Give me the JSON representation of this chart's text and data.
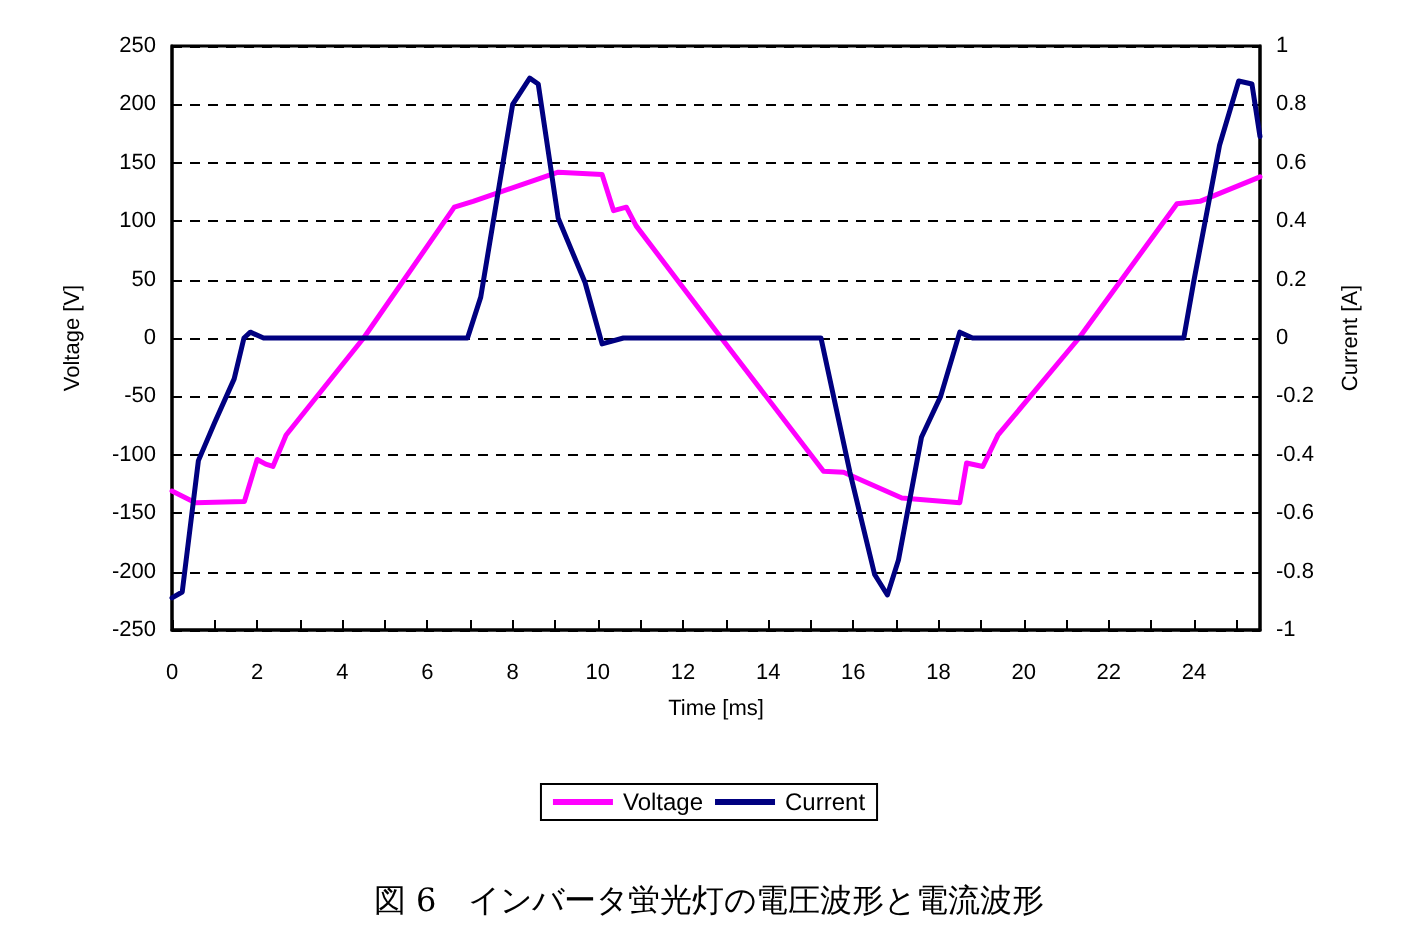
{
  "chart_data": {
    "type": "line",
    "xlabel": "Time [ms]",
    "ylabel": "Voltage [V]",
    "y2label": "Current [A]",
    "annotations": [
      "図 6　インバータ蛍光灯の電圧波形と電流波形"
    ],
    "xlim": [
      0,
      25.55
    ],
    "xticks": [
      0,
      {
        "value": 1,
        "label": null
      },
      2,
      {
        "value": 3,
        "label": null
      },
      4,
      {
        "value": 5,
        "label": null
      },
      6,
      {
        "value": 7,
        "label": null
      },
      8,
      {
        "value": 9,
        "label": null
      },
      10,
      {
        "value": 11,
        "label": null
      },
      12,
      {
        "value": 13,
        "label": null
      },
      14,
      {
        "value": 15,
        "label": null
      },
      16,
      {
        "value": 17,
        "label": null
      },
      18,
      {
        "value": 19,
        "label": null
      },
      20,
      {
        "value": 21,
        "label": null
      },
      22,
      {
        "value": 23,
        "label": null
      },
      24,
      {
        "value": 25,
        "label": null
      }
    ],
    "ylim": [
      -250,
      250
    ],
    "yticks": [
      -250,
      -200,
      -150,
      -100,
      -50,
      0,
      50,
      100,
      150,
      200,
      250
    ],
    "y2lim": [
      -1,
      1
    ],
    "y2ticks": [
      -1,
      -0.8,
      -0.6,
      -0.4,
      -0.2,
      0,
      0.2,
      0.4,
      0.6,
      0.8,
      1
    ],
    "grid": "y",
    "legend": "bottom",
    "marker": "none",
    "line_style": "solid",
    "series": [
      {
        "name": "Voltage",
        "color": "#ff00ff",
        "x": [
          0,
          0.55,
          1.7,
          2.0,
          2.2,
          2.37,
          2.68,
          4.5,
          6.63,
          7.07,
          9.07,
          10.1,
          10.37,
          10.67,
          10.9,
          12.9,
          15.3,
          15.77,
          17.14,
          18.5,
          18.66,
          19.04,
          19.4,
          21.3,
          23.6,
          24.14,
          25.55
        ],
        "values": [
          -131,
          -141,
          -140,
          -104,
          -108,
          -110,
          -83,
          0,
          112,
          117,
          142,
          140,
          109,
          112,
          96,
          0,
          -114,
          -115,
          -137,
          -141,
          -107,
          -110,
          -83,
          0,
          115,
          117,
          138
        ]
      },
      {
        "name": "Current",
        "color": "#000080",
        "axis": "y2",
        "x": [
          0,
          0.24,
          0.62,
          1.0,
          1.46,
          1.69,
          1.84,
          2.15,
          6.94,
          7.25,
          8.0,
          8.4,
          8.6,
          9.07,
          9.7,
          10.1,
          10.6,
          15.24,
          15.92,
          16.5,
          16.8,
          17.06,
          17.6,
          18.05,
          18.5,
          18.8,
          23.76,
          23.99,
          24.6,
          25.05,
          25.36,
          25.55
        ],
        "values": [
          -0.89,
          -0.87,
          -0.42,
          -0.29,
          -0.14,
          0,
          0.02,
          0,
          0,
          0.14,
          0.8,
          0.89,
          0.87,
          0.41,
          0.19,
          -0.02,
          0,
          0,
          -0.46,
          -0.81,
          -0.88,
          -0.76,
          -0.34,
          -0.2,
          0.02,
          0,
          0,
          0.19,
          0.66,
          0.88,
          0.87,
          0.69
        ]
      }
    ]
  }
}
